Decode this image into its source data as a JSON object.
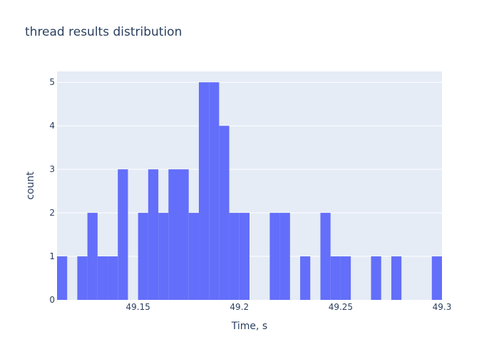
{
  "chart_data": {
    "type": "bar",
    "title": "thread results distribution",
    "xlabel": "Time, s",
    "ylabel": "count",
    "bin_start": 49.11,
    "bin_width": 0.005,
    "counts": [
      1,
      0,
      1,
      2,
      1,
      1,
      3,
      0,
      2,
      3,
      2,
      3,
      3,
      2,
      5,
      5,
      4,
      2,
      2,
      0,
      0,
      2,
      2,
      0,
      1,
      0,
      2,
      1,
      1,
      0,
      0,
      1,
      0,
      1,
      0,
      0,
      0,
      1
    ],
    "xlim": [
      49.11,
      49.3
    ],
    "ylim": [
      0,
      5.25
    ],
    "x_ticks": [
      {
        "value": 49.15,
        "label": "49.15"
      },
      {
        "value": 49.2,
        "label": "49.2"
      },
      {
        "value": 49.25,
        "label": "49.25"
      },
      {
        "value": 49.3,
        "label": "49.3"
      }
    ],
    "y_ticks": [
      {
        "value": 0,
        "label": "0"
      },
      {
        "value": 1,
        "label": "1"
      },
      {
        "value": 2,
        "label": "2"
      },
      {
        "value": 3,
        "label": "3"
      },
      {
        "value": 4,
        "label": "4"
      },
      {
        "value": 5,
        "label": "5"
      }
    ],
    "bar_color": "#636efa",
    "plot_background": "#e5ecf6",
    "grid_color": "#ffffff",
    "text_color": "#2a3f5f",
    "grid": true,
    "legend": "none"
  }
}
